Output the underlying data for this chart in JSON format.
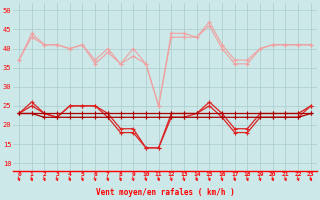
{
  "x": [
    0,
    1,
    2,
    3,
    4,
    5,
    6,
    7,
    8,
    9,
    10,
    11,
    12,
    13,
    14,
    15,
    16,
    17,
    18,
    19,
    20,
    21,
    22,
    23
  ],
  "pink1": [
    37,
    44,
    41,
    41,
    40,
    41,
    37,
    40,
    36,
    40,
    36,
    25,
    44,
    44,
    43,
    47,
    41,
    37,
    37,
    40,
    41,
    41,
    41,
    41
  ],
  "pink2": [
    37,
    43,
    41,
    41,
    40,
    41,
    36,
    39,
    36,
    38,
    36,
    25,
    43,
    43,
    43,
    46,
    40,
    36,
    36,
    40,
    41,
    41,
    41,
    41
  ],
  "red1": [
    23,
    26,
    23,
    22,
    25,
    25,
    25,
    23,
    19,
    19,
    14,
    14,
    23,
    23,
    23,
    26,
    23,
    19,
    19,
    23,
    23,
    23,
    23,
    25
  ],
  "red2": [
    23,
    25,
    23,
    22,
    25,
    25,
    25,
    22,
    18,
    18,
    14,
    14,
    22,
    22,
    23,
    25,
    22,
    18,
    18,
    22,
    22,
    22,
    22,
    25
  ],
  "red3": [
    23,
    23,
    23,
    23,
    23,
    23,
    23,
    23,
    23,
    23,
    23,
    23,
    23,
    23,
    23,
    23,
    23,
    23,
    23,
    23,
    23,
    23,
    23,
    23
  ],
  "red4": [
    23,
    23,
    22,
    22,
    22,
    22,
    22,
    22,
    22,
    22,
    22,
    22,
    22,
    22,
    22,
    22,
    22,
    22,
    22,
    22,
    22,
    22,
    22,
    23
  ],
  "bg_color": "#cce8e8",
  "grid_color": "#aacccc",
  "color_pink": "#f0a0a0",
  "color_red": "#dd2222",
  "color_darkred": "#aa0000",
  "xlabel": "Vent moyen/en rafales ( km/h )",
  "ylim": [
    8,
    52
  ],
  "xlim": [
    -0.5,
    23.5
  ],
  "yticks": [
    10,
    15,
    20,
    25,
    30,
    35,
    40,
    45,
    50
  ]
}
